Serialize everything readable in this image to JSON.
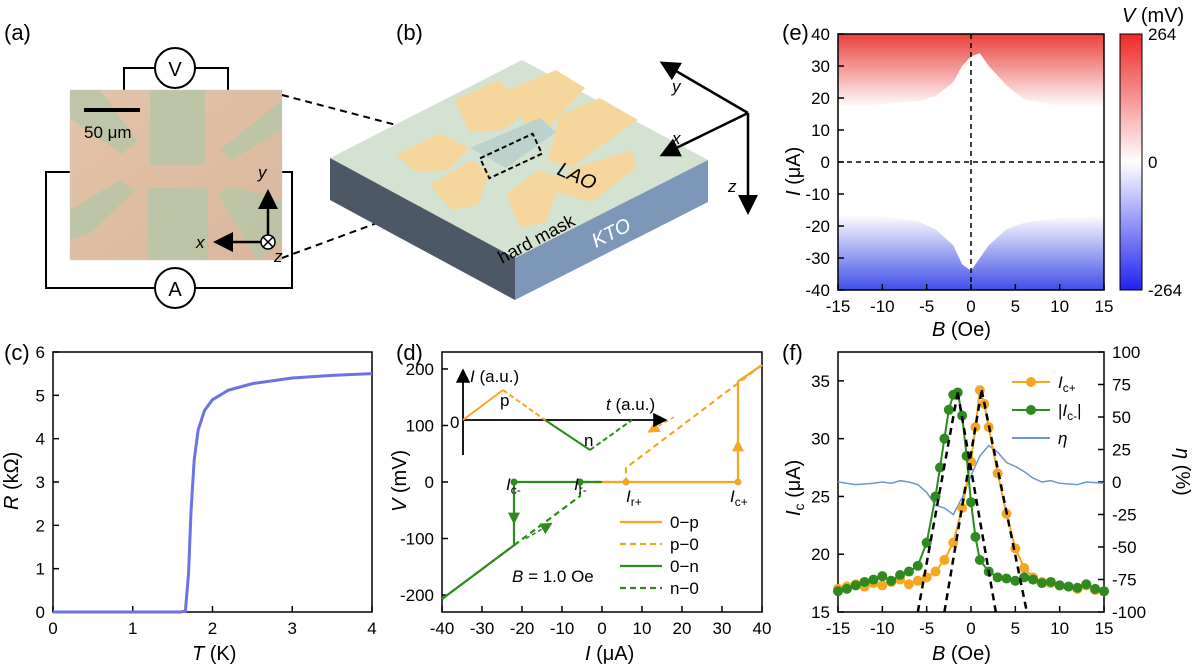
{
  "panels": {
    "a": {
      "label": "(a)",
      "voltmeter": "V",
      "ammeter": "A",
      "scale_bar": "50 μm",
      "axis_y": "y",
      "axis_x": "x",
      "axis_z": "z"
    },
    "b": {
      "label": "(b)",
      "lao": "LAO",
      "hard_mask": "hard mask",
      "kto": "KTO",
      "axis_y": "y",
      "axis_x": "x",
      "axis_z": "z"
    }
  },
  "colors": {
    "blue_curve": "#6a72e6",
    "orange": "#f5a623",
    "green": "#2f8a1f",
    "eta_line": "#6a96d6",
    "red_top": "#e8413c",
    "blue_bottom": "#3f4fe6"
  },
  "chart_data": [
    {
      "panel": "(c)",
      "type": "line",
      "xlabel_italic": "T",
      "xlabel_unit": " (K)",
      "ylabel_italic": "R",
      "ylabel_unit": " (kΩ)",
      "xlim": [
        0,
        4
      ],
      "ylim": [
        0,
        6
      ],
      "xticks": [
        "0",
        "1",
        "2",
        "3",
        "4"
      ],
      "yticks": [
        "0",
        "1",
        "2",
        "3",
        "4",
        "5",
        "6"
      ],
      "x": [
        0,
        0.5,
        1.0,
        1.5,
        1.6,
        1.66,
        1.7,
        1.73,
        1.77,
        1.82,
        1.9,
        2.0,
        2.2,
        2.5,
        3.0,
        3.5,
        4.0
      ],
      "y": [
        0,
        0,
        0,
        0,
        0,
        0.02,
        0.9,
        2.3,
        3.5,
        4.2,
        4.65,
        4.9,
        5.12,
        5.27,
        5.4,
        5.46,
        5.5
      ]
    },
    {
      "panel": "(d)",
      "type": "line",
      "xlabel_italic": "I",
      "xlabel_unit": " (μA)",
      "ylabel_italic": "V",
      "ylabel_unit": " (mV)",
      "xlim": [
        -40,
        40
      ],
      "ylim": [
        -230,
        230
      ],
      "xticks": [
        "-40",
        "-30",
        "-20",
        "-10",
        "0",
        "10",
        "20",
        "30",
        "40"
      ],
      "yticks": [
        "-200",
        "-100",
        "0",
        "100",
        "200"
      ],
      "annotation": "B = 1.0 Oe",
      "point_labels": [
        "Ic-",
        "Ir-",
        "Ir+",
        "Ic+"
      ],
      "series": [
        {
          "name": "0−p",
          "style": "solid",
          "color": "orange",
          "x": [
            0,
            34,
            34,
            40
          ],
          "y": [
            0,
            0,
            178,
            207
          ]
        },
        {
          "name": "p−0",
          "style": "dashed",
          "color": "orange",
          "x": [
            40,
            6,
            6,
            0
          ],
          "y": [
            207,
            25,
            0,
            0
          ]
        },
        {
          "name": "0−n",
          "style": "solid",
          "color": "green",
          "x": [
            0,
            -22,
            -22,
            -40
          ],
          "y": [
            0,
            0,
            -112,
            -207
          ]
        },
        {
          "name": "n−0",
          "style": "dashed",
          "color": "green",
          "x": [
            -40,
            -5.5,
            -5.5,
            0
          ],
          "y": [
            -207,
            -25,
            0,
            0
          ]
        }
      ],
      "inset": {
        "ylabel": "I (a.u.)",
        "xlabel": "t (a.u.)",
        "zero": "0",
        "p": "p",
        "n": "n"
      }
    },
    {
      "panel": "(e)",
      "type": "heatmap",
      "title_italic": "V",
      "title_unit": " (mV)",
      "xlabel_italic": "B",
      "xlabel_unit": " (Oe)",
      "ylabel_italic": "I",
      "ylabel_unit": " (μA)",
      "xlim": [
        -15,
        15
      ],
      "ylim": [
        -40,
        40
      ],
      "xticks": [
        "-15",
        "-10",
        "-5",
        "0",
        "5",
        "10",
        "15"
      ],
      "yticks": [
        "-40",
        "-30",
        "-20",
        "-10",
        "0",
        "10",
        "20",
        "30",
        "40"
      ],
      "colorbar_ticks": [
        "264",
        "0",
        "-264"
      ],
      "boundary_B": [
        -15,
        -10,
        -6,
        -4,
        -2,
        -1,
        0,
        1,
        2,
        4,
        6,
        10,
        15
      ],
      "upper_boundary_I": [
        17.5,
        18,
        19,
        20.5,
        25,
        30,
        33,
        34,
        30,
        24,
        19.5,
        17.5,
        17
      ],
      "lower_boundary_I": [
        -16.5,
        -17,
        -18.5,
        -21,
        -26,
        -32,
        -34,
        -30,
        -26,
        -21,
        -19,
        -17.5,
        -17
      ]
    },
    {
      "panel": "(f)",
      "type": "scatter",
      "xlabel_italic": "B",
      "xlabel_unit": " (Oe)",
      "ylabel_italic": "I",
      "ylabel_sub": "c",
      "ylabel_unit": " (μA)",
      "y2label_italic": "η",
      "y2label_unit": " (%)",
      "xlim": [
        -15,
        15
      ],
      "ylim": [
        15,
        37.5
      ],
      "y2lim": [
        -100,
        100
      ],
      "xticks": [
        "-15",
        "-10",
        "-5",
        "0",
        "5",
        "10",
        "15"
      ],
      "yticks": [
        "15",
        "20",
        "25",
        "30",
        "35"
      ],
      "y2ticks": [
        "100",
        "75",
        "50",
        "25",
        "0",
        "-25",
        "-50",
        "-75",
        "-100"
      ],
      "legend": [
        "Ic+",
        "|Ic-|",
        "η"
      ],
      "series": [
        {
          "name": "Ic+",
          "color": "orange",
          "x": [
            -15,
            -14,
            -13,
            -12,
            -11,
            -10,
            -9,
            -8,
            -7,
            -6,
            -5,
            -4,
            -3,
            -2,
            -1,
            0,
            0.5,
            1,
            1.5,
            2,
            3,
            4,
            5,
            6,
            7,
            8,
            9,
            10,
            11,
            12,
            13,
            14,
            15
          ],
          "y": [
            17,
            17.2,
            17.4,
            17.2,
            17.5,
            17.3,
            17.6,
            17.8,
            17.4,
            17.7,
            18,
            18.5,
            19.5,
            21,
            24,
            28,
            31,
            34.2,
            33,
            31,
            27,
            23.5,
            20.5,
            18.8,
            18,
            17.6,
            17.5,
            17.3,
            17.2,
            17,
            17.3,
            16.9,
            16.8
          ]
        },
        {
          "name": "|Ic-|",
          "color": "green",
          "x": [
            -15,
            -14,
            -13,
            -12,
            -11,
            -10,
            -9,
            -8,
            -7,
            -6,
            -5,
            -4,
            -3.5,
            -3,
            -2.5,
            -2,
            -1.5,
            -1,
            -0.5,
            0,
            0.5,
            1,
            2,
            3,
            4,
            5,
            6,
            7,
            8,
            9,
            10,
            11,
            12,
            13,
            14,
            15
          ],
          "y": [
            16.8,
            17,
            17.3,
            17.6,
            17.8,
            18.1,
            17.7,
            18.2,
            18.5,
            19,
            21,
            25,
            27.5,
            30,
            32.5,
            33.8,
            34,
            32,
            28.5,
            24.5,
            21.5,
            19.5,
            18.5,
            18,
            17.9,
            17.7,
            18,
            17.8,
            17.5,
            17.6,
            17.3,
            17.2,
            17.1,
            17.4,
            17,
            16.8
          ]
        },
        {
          "name": "η",
          "color": "eta",
          "x": [
            -15,
            -13,
            -11,
            -10,
            -9,
            -8,
            -7,
            -6,
            -5,
            -4,
            -3,
            -2,
            -1,
            0,
            1,
            2,
            3,
            4,
            5,
            6,
            7,
            8,
            9,
            10,
            12,
            13,
            15
          ],
          "y": [
            0,
            -2,
            -1,
            0,
            -1,
            1,
            0,
            -2,
            -8,
            -18,
            -20,
            -25,
            -12,
            5,
            20,
            28,
            23,
            15,
            12,
            8,
            3,
            0,
            1,
            -1,
            -2,
            0,
            -1
          ]
        }
      ],
      "fit_lines": [
        {
          "x": [
            -6,
            -1.5
          ],
          "y": [
            15,
            34
          ]
        },
        {
          "x": [
            -1.5,
            2.8
          ],
          "y": [
            34,
            15
          ]
        },
        {
          "x": [
            -3,
            1.2
          ],
          "y": [
            15,
            34.2
          ]
        },
        {
          "x": [
            1.2,
            6.3
          ],
          "y": [
            34.2,
            15
          ]
        }
      ]
    }
  ]
}
